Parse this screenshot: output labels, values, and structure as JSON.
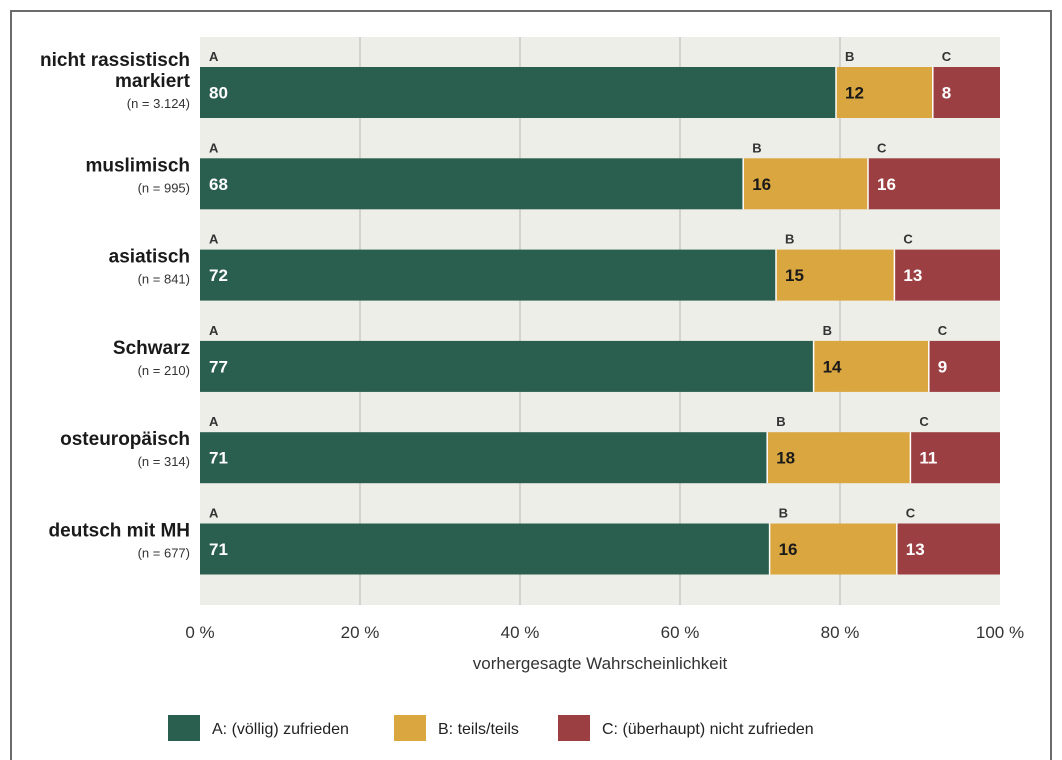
{
  "chart_data": {
    "type": "bar",
    "orientation": "horizontal",
    "stacked": true,
    "categories": [
      {
        "name": "nicht rassistisch markiert",
        "name_lines": [
          "nicht rassistisch",
          "markiert"
        ],
        "n": "(n = 3.124)"
      },
      {
        "name": "muslimisch",
        "name_lines": [
          "muslimisch"
        ],
        "n": "(n = 995)"
      },
      {
        "name": "asiatisch",
        "name_lines": [
          "asiatisch"
        ],
        "n": "(n = 841)"
      },
      {
        "name": "Schwarz",
        "name_lines": [
          "Schwarz"
        ],
        "n": "(n = 210)"
      },
      {
        "name": "osteuropäisch",
        "name_lines": [
          "osteuropäisch"
        ],
        "n": "(n = 314)"
      },
      {
        "name": "deutsch mit MH",
        "name_lines": [
          "deutsch mit MH"
        ],
        "n": "(n = 677)"
      }
    ],
    "series": [
      {
        "letter": "A",
        "name": "A: (völlig) zufrieden",
        "color": "#2a5e4e",
        "value_color": "#ffffff",
        "values": [
          79.5,
          67.9,
          72.0,
          76.7,
          70.9,
          71.2
        ],
        "labels": [
          "80",
          "68",
          "72",
          "77",
          "71",
          "71"
        ]
      },
      {
        "letter": "B",
        "name": "B: teils/teils",
        "color": "#d9a640",
        "value_color": "#1a1a1a",
        "values": [
          12.1,
          15.6,
          14.8,
          14.4,
          17.9,
          15.9
        ],
        "labels": [
          "12",
          "16",
          "15",
          "14",
          "18",
          "16"
        ]
      },
      {
        "letter": "C",
        "name": "C: (überhaupt) nicht zufrieden",
        "color": "#9c3f42",
        "value_color": "#ffffff",
        "values": [
          8.4,
          16.5,
          13.2,
          8.9,
          11.2,
          12.9
        ],
        "labels": [
          "8",
          "16",
          "13",
          "9",
          "11",
          "13"
        ]
      }
    ],
    "x_ticks": [
      "0 %",
      "20 %",
      "40 %",
      "60 %",
      "80 %",
      "100 %"
    ],
    "x_tick_values": [
      0,
      20,
      40,
      60,
      80,
      100
    ],
    "xlim": [
      0,
      100
    ],
    "xlabel": "vorhergesagte Wahrscheinlichkeit",
    "grid": true,
    "legend_position": "bottom",
    "plot_background": "#eeeee8",
    "grid_color": "#b5b5b5"
  }
}
